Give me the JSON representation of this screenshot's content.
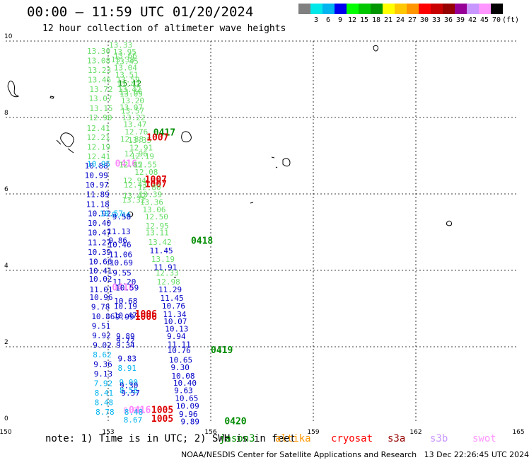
{
  "header": {
    "title": "00:00 – 11:59 UTC 01/20/2024",
    "subtitle": "12 hour collection of altimeter wave heights"
  },
  "color_scale": {
    "unit": "(ft)",
    "bins": [
      {
        "label": "",
        "color": "#808080"
      },
      {
        "label": "3",
        "color": "#00e8e8"
      },
      {
        "label": "6",
        "color": "#00b4f0"
      },
      {
        "label": "9",
        "color": "#0000f0"
      },
      {
        "label": "12",
        "color": "#00ff00"
      },
      {
        "label": "15",
        "color": "#00c800"
      },
      {
        "label": "18",
        "color": "#009600"
      },
      {
        "label": "21",
        "color": "#ffff00"
      },
      {
        "label": "24",
        "color": "#ffc800"
      },
      {
        "label": "27",
        "color": "#ff9600"
      },
      {
        "label": "30",
        "color": "#ff0000"
      },
      {
        "label": "33",
        "color": "#c80000"
      },
      {
        "label": "36",
        "color": "#960000"
      },
      {
        "label": "39",
        "color": "#960096"
      },
      {
        "label": "42",
        "color": "#c896ff"
      },
      {
        "label": "45",
        "color": "#ff96ff"
      },
      {
        "label": "70",
        "color": "#000000"
      }
    ]
  },
  "axes": {
    "lon_ticks": [
      "150",
      "153",
      "156",
      "159",
      "162",
      "165"
    ],
    "lat_ticks": [
      "0",
      "2",
      "4",
      "6",
      "8",
      "10"
    ]
  },
  "colors": {
    "c_cyan": "#00b4f0",
    "c_blue": "#0000c8",
    "c_lgreen": "#66dd66",
    "c_green": "#008c00",
    "c_red": "#dd0000",
    "c_pink": "#ff88ff",
    "c_black": "#000000"
  },
  "observations": [
    {
      "lon": 153.02,
      "lat": 9.82,
      "v": "13.33",
      "c": "c_lgreen"
    },
    {
      "lon": 152.38,
      "lat": 9.67,
      "v": "13.30",
      "c": "c_lgreen"
    },
    {
      "lon": 153.14,
      "lat": 9.65,
      "v": "13.95",
      "c": "c_lgreen"
    },
    {
      "lon": 153.16,
      "lat": 9.55,
      "v": "13.66",
      "c": "c_lgreen"
    },
    {
      "lon": 152.38,
      "lat": 9.42,
      "v": "13.08",
      "c": "c_lgreen"
    },
    {
      "lon": 153.08,
      "lat": 9.44,
      "v": "13.38",
      "c": "c_lgreen"
    },
    {
      "lon": 153.2,
      "lat": 9.4,
      "v": "13.45",
      "c": "c_lgreen"
    },
    {
      "lon": 153.16,
      "lat": 9.23,
      "v": "13.04",
      "c": "c_lgreen"
    },
    {
      "lon": 152.4,
      "lat": 9.17,
      "v": "13.23",
      "c": "c_lgreen"
    },
    {
      "lon": 153.2,
      "lat": 9.05,
      "v": "13.51",
      "c": "c_lgreen"
    },
    {
      "lon": 152.4,
      "lat": 8.92,
      "v": "13.46",
      "c": "c_lgreen"
    },
    {
      "lon": 153.24,
      "lat": 8.92,
      "v": "13.59",
      "c": "c_lgreen"
    },
    {
      "lon": 153.29,
      "lat": 8.82,
      "v": "15.12",
      "c": "c_green"
    },
    {
      "lon": 153.24,
      "lat": 8.8,
      "v": "13.47",
      "c": "c_lgreen"
    },
    {
      "lon": 152.45,
      "lat": 8.67,
      "v": "13.72",
      "c": "c_lgreen"
    },
    {
      "lon": 153.28,
      "lat": 8.67,
      "v": "13.42",
      "c": "c_lgreen"
    },
    {
      "lon": 153.32,
      "lat": 8.6,
      "v": "13.66",
      "c": "c_lgreen"
    },
    {
      "lon": 153.33,
      "lat": 8.55,
      "v": "13.05",
      "c": "c_lgreen"
    },
    {
      "lon": 152.43,
      "lat": 8.43,
      "v": "13.07",
      "c": "c_lgreen"
    },
    {
      "lon": 153.37,
      "lat": 8.37,
      "v": "13.20",
      "c": "c_lgreen"
    },
    {
      "lon": 152.45,
      "lat": 8.17,
      "v": "13.15",
      "c": "c_lgreen"
    },
    {
      "lon": 153.33,
      "lat": 8.19,
      "v": "13.07",
      "c": "c_lgreen"
    },
    {
      "lon": 153.37,
      "lat": 8.1,
      "v": "13.57",
      "c": "c_lgreen"
    },
    {
      "lon": 152.43,
      "lat": 7.93,
      "v": "12.90",
      "c": "c_lgreen"
    },
    {
      "lon": 153.4,
      "lat": 7.93,
      "v": "13.22",
      "c": "c_lgreen"
    },
    {
      "lon": 153.44,
      "lat": 7.75,
      "v": "13.47",
      "c": "c_lgreen"
    },
    {
      "lon": 152.37,
      "lat": 7.65,
      "v": "12.41",
      "c": "c_lgreen"
    },
    {
      "lon": 153.48,
      "lat": 7.56,
      "v": "12.76",
      "c": "c_lgreen"
    },
    {
      "lon": 154.32,
      "lat": 7.53,
      "v": "0417",
      "c": "c_green",
      "pass": true
    },
    {
      "lon": 152.37,
      "lat": 7.41,
      "v": "12.21",
      "c": "c_lgreen"
    },
    {
      "lon": 153.35,
      "lat": 7.36,
      "v": "12.88",
      "c": "c_lgreen"
    },
    {
      "lon": 153.58,
      "lat": 7.33,
      "v": "13.35",
      "c": "c_lgreen"
    },
    {
      "lon": 154.12,
      "lat": 7.4,
      "v": "1007",
      "c": "c_red",
      "pass": true
    },
    {
      "lon": 152.38,
      "lat": 7.16,
      "v": "12.19",
      "c": "c_lgreen"
    },
    {
      "lon": 153.62,
      "lat": 7.14,
      "v": "12.91",
      "c": "c_lgreen"
    },
    {
      "lon": 153.47,
      "lat": 6.98,
      "v": "12.96",
      "c": "c_lgreen"
    },
    {
      "lon": 152.38,
      "lat": 6.91,
      "v": "12.41",
      "c": "c_lgreen"
    },
    {
      "lon": 153.66,
      "lat": 6.92,
      "v": "12.19",
      "c": "c_lgreen"
    },
    {
      "lon": 152.31,
      "lat": 6.67,
      "v": "10.88",
      "c": "c_blue"
    },
    {
      "lon": 152.38,
      "lat": 6.71,
      "v": "10.95",
      "c": "c_cyan"
    },
    {
      "lon": 153.2,
      "lat": 6.71,
      "v": "0416",
      "c": "c_pink",
      "pass": true
    },
    {
      "lon": 153.31,
      "lat": 6.69,
      "v": "12.85",
      "c": "c_lgreen"
    },
    {
      "lon": 153.74,
      "lat": 6.69,
      "v": "12.55",
      "c": "c_lgreen"
    },
    {
      "lon": 153.77,
      "lat": 6.5,
      "v": "12.08",
      "c": "c_lgreen"
    },
    {
      "lon": 152.31,
      "lat": 6.42,
      "v": "10.99",
      "c": "c_blue"
    },
    {
      "lon": 153.43,
      "lat": 6.28,
      "v": "12.94",
      "c": "c_lgreen"
    },
    {
      "lon": 153.45,
      "lat": 6.17,
      "v": "12.43",
      "c": "c_lgreen"
    },
    {
      "lon": 154.07,
      "lat": 6.3,
      "v": "1007",
      "c": "c_red",
      "pass": true
    },
    {
      "lon": 154.07,
      "lat": 6.18,
      "v": "1007",
      "c": "c_red",
      "pass": true
    },
    {
      "lon": 153.86,
      "lat": 6.1,
      "v": "12.80",
      "c": "c_lgreen"
    },
    {
      "lon": 152.33,
      "lat": 6.17,
      "v": "10.97",
      "c": "c_blue"
    },
    {
      "lon": 153.89,
      "lat": 5.92,
      "v": "13.39",
      "c": "c_lgreen"
    },
    {
      "lon": 152.35,
      "lat": 5.92,
      "v": "11.89",
      "c": "c_blue"
    },
    {
      "lon": 153.43,
      "lat": 5.88,
      "v": "13.42",
      "c": "c_lgreen"
    },
    {
      "lon": 153.4,
      "lat": 5.77,
      "v": "13.32",
      "c": "c_lgreen"
    },
    {
      "lon": 153.93,
      "lat": 5.71,
      "v": "13.36",
      "c": "c_lgreen"
    },
    {
      "lon": 152.35,
      "lat": 5.66,
      "v": "11.18",
      "c": "c_blue"
    },
    {
      "lon": 154.0,
      "lat": 5.52,
      "v": "13.06",
      "c": "c_lgreen"
    },
    {
      "lon": 152.4,
      "lat": 5.42,
      "v": "10.92",
      "c": "c_blue"
    },
    {
      "lon": 152.75,
      "lat": 5.42,
      "v": "10.57",
      "c": "c_cyan"
    },
    {
      "lon": 153.1,
      "lat": 5.38,
      "v": "9.44",
      "c": "c_cyan"
    },
    {
      "lon": 153.12,
      "lat": 5.33,
      "v": "9.58",
      "c": "c_blue"
    },
    {
      "lon": 154.07,
      "lat": 5.33,
      "v": "12.50",
      "c": "c_lgreen"
    },
    {
      "lon": 152.4,
      "lat": 5.17,
      "v": "10.40",
      "c": "c_blue"
    },
    {
      "lon": 154.09,
      "lat": 5.09,
      "v": "12.95",
      "c": "c_lgreen"
    },
    {
      "lon": 152.4,
      "lat": 4.92,
      "v": "10.47",
      "c": "c_blue"
    },
    {
      "lon": 152.97,
      "lat": 4.94,
      "v": "11.13",
      "c": "c_blue"
    },
    {
      "lon": 154.09,
      "lat": 4.92,
      "v": "13.11",
      "c": "c_lgreen"
    },
    {
      "lon": 153.01,
      "lat": 4.71,
      "v": "9.86",
      "c": "c_blue"
    },
    {
      "lon": 154.17,
      "lat": 4.67,
      "v": "13.42",
      "c": "c_lgreen"
    },
    {
      "lon": 155.42,
      "lat": 4.69,
      "v": "0418",
      "c": "c_green",
      "pass": true
    },
    {
      "lon": 152.4,
      "lat": 4.66,
      "v": "11.27",
      "c": "c_blue"
    },
    {
      "lon": 152.99,
      "lat": 4.6,
      "v": "10.46",
      "c": "c_blue"
    },
    {
      "lon": 152.4,
      "lat": 4.41,
      "v": "10.39",
      "c": "c_blue"
    },
    {
      "lon": 154.21,
      "lat": 4.44,
      "v": "11.45",
      "c": "c_blue"
    },
    {
      "lon": 153.02,
      "lat": 4.34,
      "v": "11.06",
      "c": "c_blue"
    },
    {
      "lon": 152.43,
      "lat": 4.16,
      "v": "10.66",
      "c": "c_blue"
    },
    {
      "lon": 153.04,
      "lat": 4.13,
      "v": "10.69",
      "c": "c_blue"
    },
    {
      "lon": 154.26,
      "lat": 4.22,
      "v": "13.19",
      "c": "c_lgreen"
    },
    {
      "lon": 152.43,
      "lat": 3.92,
      "v": "10.41",
      "c": "c_blue"
    },
    {
      "lon": 154.33,
      "lat": 4.01,
      "v": "11.91",
      "c": "c_blue"
    },
    {
      "lon": 153.13,
      "lat": 3.86,
      "v": "9.55",
      "c": "c_blue"
    },
    {
      "lon": 154.38,
      "lat": 3.86,
      "v": "12.33",
      "c": "c_lgreen"
    },
    {
      "lon": 152.43,
      "lat": 3.7,
      "v": "10.02",
      "c": "c_blue"
    },
    {
      "lon": 153.13,
      "lat": 3.63,
      "v": "11.20",
      "c": "c_blue"
    },
    {
      "lon": 154.42,
      "lat": 3.63,
      "v": "12.98",
      "c": "c_lgreen"
    },
    {
      "lon": 153.11,
      "lat": 3.47,
      "v": "0416",
      "c": "c_pink",
      "pass": true
    },
    {
      "lon": 152.45,
      "lat": 3.43,
      "v": "11.01",
      "c": "c_blue"
    },
    {
      "lon": 154.47,
      "lat": 3.43,
      "v": "11.29",
      "c": "c_blue"
    },
    {
      "lon": 153.21,
      "lat": 3.47,
      "v": "10.59",
      "c": "c_blue"
    },
    {
      "lon": 152.45,
      "lat": 3.22,
      "v": "10.96",
      "c": "c_blue"
    },
    {
      "lon": 154.52,
      "lat": 3.2,
      "v": "11.45",
      "c": "c_blue"
    },
    {
      "lon": 153.17,
      "lat": 3.13,
      "v": "10.68",
      "c": "c_blue"
    },
    {
      "lon": 152.5,
      "lat": 2.97,
      "v": "9.78",
      "c": "c_blue"
    },
    {
      "lon": 153.16,
      "lat": 2.99,
      "v": "10.19",
      "c": "c_blue"
    },
    {
      "lon": 154.57,
      "lat": 3.0,
      "v": "10.76",
      "c": "c_blue"
    },
    {
      "lon": 154.6,
      "lat": 2.78,
      "v": "11.34",
      "c": "c_blue"
    },
    {
      "lon": 153.16,
      "lat": 2.75,
      "v": "10.47",
      "c": "c_blue"
    },
    {
      "lon": 153.21,
      "lat": 2.71,
      "v": "9.99",
      "c": "c_blue"
    },
    {
      "lon": 153.78,
      "lat": 2.78,
      "v": "1006",
      "c": "c_red",
      "pass": true
    },
    {
      "lon": 153.78,
      "lat": 2.7,
      "v": "1006",
      "c": "c_red",
      "pass": true
    },
    {
      "lon": 152.51,
      "lat": 2.72,
      "v": "10.86",
      "c": "c_blue"
    },
    {
      "lon": 154.62,
      "lat": 2.59,
      "v": "10.07",
      "c": "c_blue"
    },
    {
      "lon": 152.52,
      "lat": 2.47,
      "v": "9.51",
      "c": "c_blue"
    },
    {
      "lon": 154.66,
      "lat": 2.4,
      "v": "10.13",
      "c": "c_blue"
    },
    {
      "lon": 152.53,
      "lat": 2.22,
      "v": "9.92",
      "c": "c_blue"
    },
    {
      "lon": 153.23,
      "lat": 2.2,
      "v": "9.89",
      "c": "c_blue"
    },
    {
      "lon": 153.23,
      "lat": 2.09,
      "v": "9.72",
      "c": "c_blue"
    },
    {
      "lon": 154.72,
      "lat": 2.2,
      "v": "9.94",
      "c": "c_blue"
    },
    {
      "lon": 152.55,
      "lat": 1.97,
      "v": "9.02",
      "c": "c_blue"
    },
    {
      "lon": 153.23,
      "lat": 1.97,
      "v": "9.34",
      "c": "c_blue"
    },
    {
      "lon": 154.73,
      "lat": 1.99,
      "v": "11.11",
      "c": "c_blue"
    },
    {
      "lon": 154.73,
      "lat": 1.83,
      "v": "10.76",
      "c": "c_blue"
    },
    {
      "lon": 156.0,
      "lat": 1.83,
      "v": "0419",
      "c": "c_green",
      "pass": true
    },
    {
      "lon": 152.55,
      "lat": 1.72,
      "v": "8.62",
      "c": "c_cyan"
    },
    {
      "lon": 153.28,
      "lat": 1.62,
      "v": "9.83",
      "c": "c_blue"
    },
    {
      "lon": 154.78,
      "lat": 1.58,
      "v": "10.65",
      "c": "c_blue"
    },
    {
      "lon": 152.57,
      "lat": 1.47,
      "v": "9.36",
      "c": "c_blue"
    },
    {
      "lon": 153.28,
      "lat": 1.37,
      "v": "8.91",
      "c": "c_cyan"
    },
    {
      "lon": 154.83,
      "lat": 1.39,
      "v": "9.30",
      "c": "c_blue"
    },
    {
      "lon": 152.58,
      "lat": 1.22,
      "v": "9.13",
      "c": "c_blue"
    },
    {
      "lon": 154.85,
      "lat": 1.17,
      "v": "10.08",
      "c": "c_blue"
    },
    {
      "lon": 153.32,
      "lat": 1.0,
      "v": "9.00",
      "c": "c_cyan"
    },
    {
      "lon": 152.58,
      "lat": 0.97,
      "v": "7.92",
      "c": "c_cyan"
    },
    {
      "lon": 153.33,
      "lat": 0.92,
      "v": "9.30",
      "c": "c_blue"
    },
    {
      "lon": 154.9,
      "lat": 0.98,
      "v": "10.40",
      "c": "c_blue"
    },
    {
      "lon": 153.33,
      "lat": 0.79,
      "v": "8.56",
      "c": "c_cyan"
    },
    {
      "lon": 153.38,
      "lat": 0.72,
      "v": "9.57",
      "c": "c_blue"
    },
    {
      "lon": 152.6,
      "lat": 0.72,
      "v": "8.41",
      "c": "c_cyan"
    },
    {
      "lon": 154.93,
      "lat": 0.79,
      "v": "9.63",
      "c": "c_blue"
    },
    {
      "lon": 154.95,
      "lat": 0.58,
      "v": "10.65",
      "c": "c_blue"
    },
    {
      "lon": 152.6,
      "lat": 0.47,
      "v": "8.48",
      "c": "c_cyan"
    },
    {
      "lon": 154.98,
      "lat": 0.38,
      "v": "10.09",
      "c": "c_blue"
    },
    {
      "lon": 153.44,
      "lat": 0.27,
      "v": "8.90",
      "c": "c_pink"
    },
    {
      "lon": 153.6,
      "lat": 0.27,
      "v": "0416",
      "c": "c_pink",
      "pass": true
    },
    {
      "lon": 154.26,
      "lat": 0.27,
      "v": "1005",
      "c": "c_red",
      "pass": true
    },
    {
      "lon": 152.63,
      "lat": 0.22,
      "v": "8.78",
      "c": "c_cyan"
    },
    {
      "lon": 153.47,
      "lat": 0.22,
      "v": "8.48",
      "c": "c_cyan"
    },
    {
      "lon": 155.07,
      "lat": 0.17,
      "v": "9.96",
      "c": "c_blue"
    },
    {
      "lon": 153.45,
      "lat": 0.02,
      "v": "8.67",
      "c": "c_cyan"
    },
    {
      "lon": 154.26,
      "lat": 0.04,
      "v": "1005",
      "c": "c_red",
      "pass": true
    },
    {
      "lon": 155.12,
      "lat": -0.03,
      "v": "9.89",
      "c": "c_blue"
    },
    {
      "lon": 156.4,
      "lat": -0.03,
      "v": "0420",
      "c": "c_green",
      "pass": true
    }
  ],
  "note": {
    "prefix": "note: 1) Time is in UTC; 2) SWH is in feet",
    "sources": [
      {
        "label": "jason3",
        "color": "#008c00"
      },
      {
        "label": "altika",
        "color": "#ff9600"
      },
      {
        "label": "cryosat",
        "color": "#ff0000"
      },
      {
        "label": "s3a",
        "color": "#960000"
      },
      {
        "label": "s3b",
        "color": "#c896ff"
      },
      {
        "label": "swot",
        "color": "#ff96ff"
      }
    ]
  },
  "credit": {
    "center": "NOAA/NESDIS Center for Satellite Applications and Research",
    "stamp": "13 Dec 22:26:45 UTC 2024"
  }
}
